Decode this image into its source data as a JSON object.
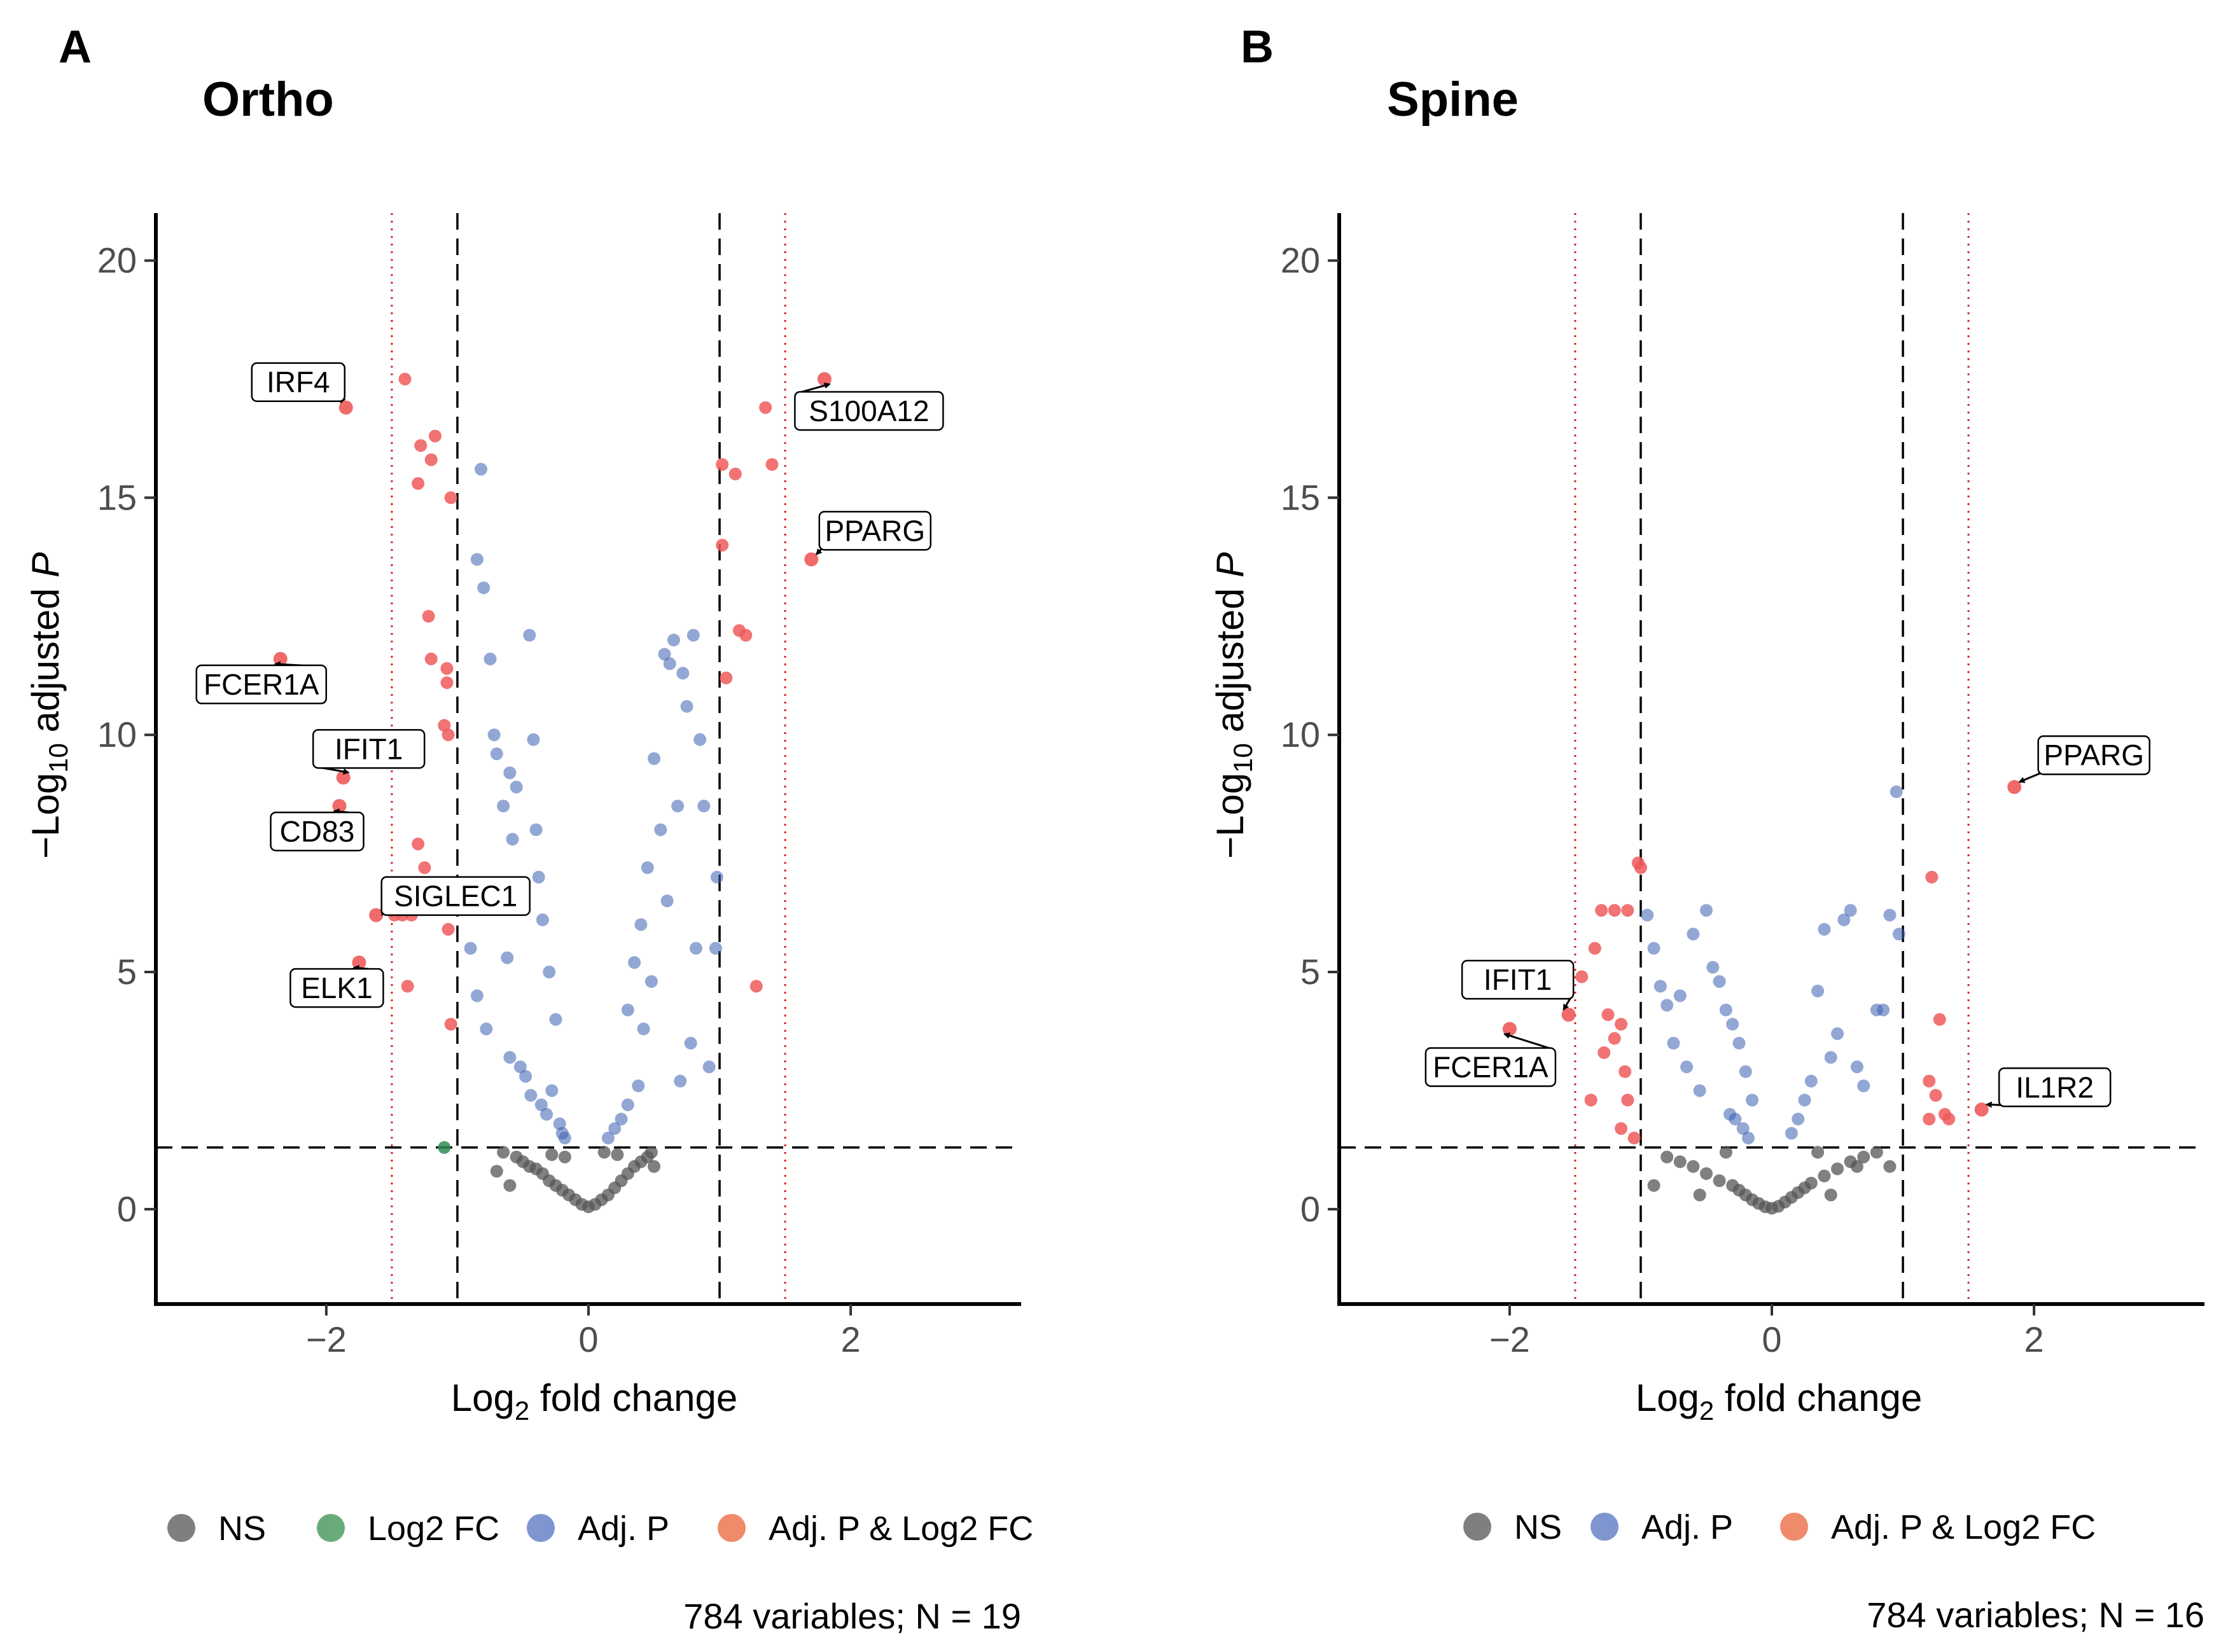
{
  "colors": {
    "ns": "#555555",
    "log2fc": "#2e8b57",
    "adjp": "#3a5fb0",
    "both": "#ee5a5a",
    "legend_ns": "#7f7f7f",
    "legend_log2fc": "#6aaa7a",
    "legend_adjp": "#7f95cf",
    "legend_both": "#ef8a6a"
  },
  "chart_data": [
    {
      "type": "scatter",
      "panel_label": "A",
      "title": "Ortho",
      "xlabel_main": "Log",
      "xlabel_sub": "2",
      "xlabel_rest": " fold change",
      "ylabel_prefix": "−Log",
      "ylabel_sub": "10",
      "ylabel_rest": " adjusted ",
      "ylabel_italic": "P",
      "xlim": [
        -3.3,
        3.3
      ],
      "ylim": [
        -2,
        21
      ],
      "xticks": [
        -2,
        0,
        2
      ],
      "xtick_labels": [
        "−2",
        "0",
        "2"
      ],
      "yticks": [
        0,
        5,
        10,
        15,
        20
      ],
      "ytick_labels": [
        "0",
        "5",
        "10",
        "15",
        "20"
      ],
      "fc_cutoff": 1,
      "fc_cutoff_outer": 1.5,
      "p_cutoff": 1.3,
      "legend": [
        {
          "key": "ns",
          "label": "NS"
        },
        {
          "key": "log2fc",
          "label": "Log2 FC"
        },
        {
          "key": "adjp",
          "label": "Adj. P"
        },
        {
          "key": "both",
          "label": "Adj. P & Log2 FC"
        }
      ],
      "caption": "784 variables; N = 19",
      "series": [
        {
          "name": "Adj. P & Log2 FC",
          "key": "both",
          "x": [
            -1.4,
            -1.28,
            -1.17,
            -1.2,
            -1.3,
            -1.22,
            -1.05,
            -1.2,
            -1.08,
            -1.07,
            -1.1,
            -1.08,
            -1.3,
            -1.25,
            -1.48,
            -1.42,
            -1.35,
            -1.07,
            -1.05,
            -1.38,
            1.35,
            1.02,
            1.12,
            1.4,
            1.02,
            1.15,
            1.2,
            1.05,
            1.28
          ],
          "y": [
            17.5,
            16.1,
            16.3,
            15.8,
            15.3,
            12.5,
            15.0,
            11.6,
            11.1,
            10.0,
            10.2,
            11.4,
            7.7,
            7.2,
            6.2,
            6.2,
            6.2,
            5.9,
            3.9,
            4.7,
            16.9,
            15.7,
            15.5,
            15.7,
            14.0,
            12.2,
            12.1,
            11.2,
            4.7
          ]
        },
        {
          "name": "Log2 FC",
          "key": "log2fc",
          "x": [
            -1.1
          ],
          "y": [
            1.3
          ]
        },
        {
          "name": "Adj. P",
          "key": "adjp",
          "x": [
            -0.82,
            -0.85,
            -0.8,
            -0.75,
            -0.72,
            -0.7,
            -0.6,
            -0.55,
            -0.45,
            -0.42,
            -0.4,
            -0.38,
            -0.5,
            -0.58,
            -0.65,
            -0.68,
            -0.62,
            -0.35,
            -0.3,
            -0.25,
            -0.9,
            -0.85,
            -0.78,
            -0.6,
            -0.52,
            -0.48,
            -0.44,
            -0.36,
            -0.32,
            -0.28,
            -0.22,
            -0.2,
            -0.18,
            0.58,
            0.62,
            0.65,
            0.72,
            0.75,
            0.8,
            0.68,
            0.55,
            0.5,
            0.45,
            0.4,
            0.35,
            0.3,
            0.85,
            0.88,
            0.92,
            0.82,
            0.78,
            0.6,
            0.48,
            0.42,
            0.38,
            0.3,
            0.25,
            0.2,
            0.15,
            0.7,
            0.98,
            0.97
          ],
          "y": [
            15.6,
            13.7,
            13.1,
            11.6,
            10.0,
            9.6,
            9.2,
            8.9,
            12.1,
            9.9,
            8.0,
            7.0,
            6.4,
            7.8,
            8.5,
            6.5,
            5.3,
            6.1,
            5.0,
            4.0,
            5.5,
            4.5,
            3.8,
            3.2,
            3.0,
            2.8,
            2.4,
            2.2,
            2.0,
            2.5,
            1.8,
            1.6,
            1.5,
            11.7,
            11.5,
            12.0,
            11.3,
            10.6,
            12.1,
            8.5,
            8.0,
            9.5,
            7.2,
            6.0,
            5.2,
            4.2,
            9.9,
            8.5,
            3.0,
            5.5,
            3.5,
            6.5,
            4.8,
            3.8,
            2.6,
            2.2,
            1.9,
            1.7,
            1.5,
            2.7,
            7.0,
            5.5
          ]
        },
        {
          "name": "NS",
          "key": "ns",
          "x": [
            -0.55,
            -0.5,
            -0.45,
            -0.4,
            -0.35,
            -0.3,
            -0.25,
            -0.2,
            -0.15,
            -0.1,
            -0.05,
            0.0,
            0.05,
            0.1,
            0.15,
            0.2,
            0.25,
            0.3,
            0.35,
            0.4,
            0.45,
            -0.7,
            -0.65,
            -0.6,
            0.5,
            0.48,
            -0.28,
            -0.18,
            0.12,
            0.22
          ],
          "y": [
            1.1,
            1.0,
            0.9,
            0.85,
            0.75,
            0.6,
            0.5,
            0.4,
            0.3,
            0.2,
            0.1,
            0.05,
            0.1,
            0.2,
            0.3,
            0.45,
            0.6,
            0.75,
            0.9,
            1.0,
            1.1,
            0.8,
            1.2,
            0.5,
            0.9,
            1.2,
            1.15,
            1.1,
            1.2,
            1.15
          ]
        }
      ],
      "labeled_genes": [
        {
          "label": "IRF4",
          "x": -1.85,
          "y": 16.9
        },
        {
          "label": "S100A12",
          "x": 1.8,
          "y": 17.5
        },
        {
          "label": "PPARG",
          "x": 1.7,
          "y": 13.7
        },
        {
          "label": "FCER1A",
          "x": -2.35,
          "y": 11.6
        },
        {
          "label": "IFIT1",
          "x": -1.87,
          "y": 9.1
        },
        {
          "label": "CD83",
          "x": -1.9,
          "y": 8.5
        },
        {
          "label": "SIGLEC1",
          "x": -1.62,
          "y": 6.2
        },
        {
          "label": "ELK1",
          "x": -1.75,
          "y": 5.2
        }
      ]
    },
    {
      "type": "scatter",
      "panel_label": "B",
      "title": "Spine",
      "xlabel_main": "Log",
      "xlabel_sub": "2",
      "xlabel_rest": " fold change",
      "ylabel_prefix": "−Log",
      "ylabel_sub": "10",
      "ylabel_rest": " adjusted ",
      "ylabel_italic": "P",
      "xlim": [
        -3.3,
        3.3
      ],
      "ylim": [
        -2,
        21
      ],
      "xticks": [
        -2,
        0,
        2
      ],
      "xtick_labels": [
        "−2",
        "0",
        "2"
      ],
      "yticks": [
        0,
        5,
        10,
        15,
        20
      ],
      "ytick_labels": [
        "0",
        "5",
        "10",
        "15",
        "20"
      ],
      "fc_cutoff": 1,
      "fc_cutoff_outer": 1.5,
      "p_cutoff": 1.3,
      "legend": [
        {
          "key": "ns",
          "label": "NS"
        },
        {
          "key": "adjp",
          "label": "Adj. P"
        },
        {
          "key": "both",
          "label": "Adj. P & Log2 FC"
        }
      ],
      "caption": "784 variables; N = 16",
      "series": [
        {
          "name": "Adj. P & Log2 FC",
          "key": "both",
          "x": [
            -1.02,
            -1.0,
            -1.2,
            -1.1,
            -1.3,
            -1.35,
            -1.45,
            -1.25,
            -1.15,
            -1.2,
            -1.28,
            -1.12,
            -1.05,
            -1.38,
            -1.1,
            -1.15,
            1.22,
            1.28,
            1.2,
            1.25,
            1.32,
            1.35,
            1.2
          ],
          "y": [
            7.3,
            7.2,
            6.3,
            6.3,
            6.3,
            5.5,
            4.9,
            4.1,
            3.9,
            3.6,
            3.3,
            2.9,
            1.5,
            2.3,
            2.3,
            1.7,
            7.0,
            4.0,
            2.7,
            2.4,
            2.0,
            1.9,
            1.9
          ]
        },
        {
          "name": "Adj. P",
          "key": "adjp",
          "x": [
            -0.95,
            -0.9,
            -0.85,
            -0.8,
            -0.7,
            -0.6,
            -0.5,
            -0.45,
            -0.4,
            -0.35,
            -0.3,
            -0.25,
            -0.2,
            -0.15,
            -0.75,
            -0.65,
            -0.55,
            -0.32,
            -0.28,
            -0.22,
            -0.18,
            0.95,
            0.97,
            0.6,
            0.55,
            0.4,
            0.35,
            0.5,
            0.45,
            0.3,
            0.25,
            0.2,
            0.15,
            0.8,
            0.85,
            0.9,
            0.65,
            0.7
          ],
          "y": [
            6.2,
            5.5,
            4.7,
            4.3,
            4.5,
            5.8,
            6.3,
            5.1,
            4.8,
            4.2,
            3.9,
            3.5,
            2.9,
            2.3,
            3.5,
            3.0,
            2.5,
            2.0,
            1.9,
            1.7,
            1.5,
            8.8,
            5.8,
            6.3,
            6.1,
            5.9,
            4.6,
            3.7,
            3.2,
            2.7,
            2.3,
            1.9,
            1.6,
            4.2,
            4.2,
            6.2,
            3.0,
            2.6
          ]
        },
        {
          "name": "NS",
          "key": "ns",
          "x": [
            -0.7,
            -0.6,
            -0.5,
            -0.4,
            -0.3,
            -0.25,
            -0.2,
            -0.15,
            -0.1,
            -0.05,
            0.0,
            0.05,
            0.1,
            0.15,
            0.2,
            0.25,
            0.3,
            0.4,
            0.5,
            0.6,
            0.7,
            0.8,
            -0.9,
            -0.8,
            0.9,
            -0.35,
            0.35,
            -0.55,
            0.45,
            0.65
          ],
          "y": [
            1.0,
            0.9,
            0.75,
            0.6,
            0.5,
            0.4,
            0.3,
            0.2,
            0.12,
            0.05,
            0.02,
            0.06,
            0.15,
            0.25,
            0.35,
            0.45,
            0.55,
            0.7,
            0.85,
            1.0,
            1.1,
            1.2,
            0.5,
            1.1,
            0.9,
            1.2,
            1.2,
            0.3,
            0.3,
            0.9
          ]
        }
      ],
      "labeled_genes": [
        {
          "label": "PPARG",
          "x": 1.85,
          "y": 8.9
        },
        {
          "label": "IFIT1",
          "x": -1.55,
          "y": 4.1
        },
        {
          "label": "FCER1A",
          "x": -2.0,
          "y": 3.8
        },
        {
          "label": "IL1R2",
          "x": 1.6,
          "y": 2.1
        }
      ]
    }
  ]
}
